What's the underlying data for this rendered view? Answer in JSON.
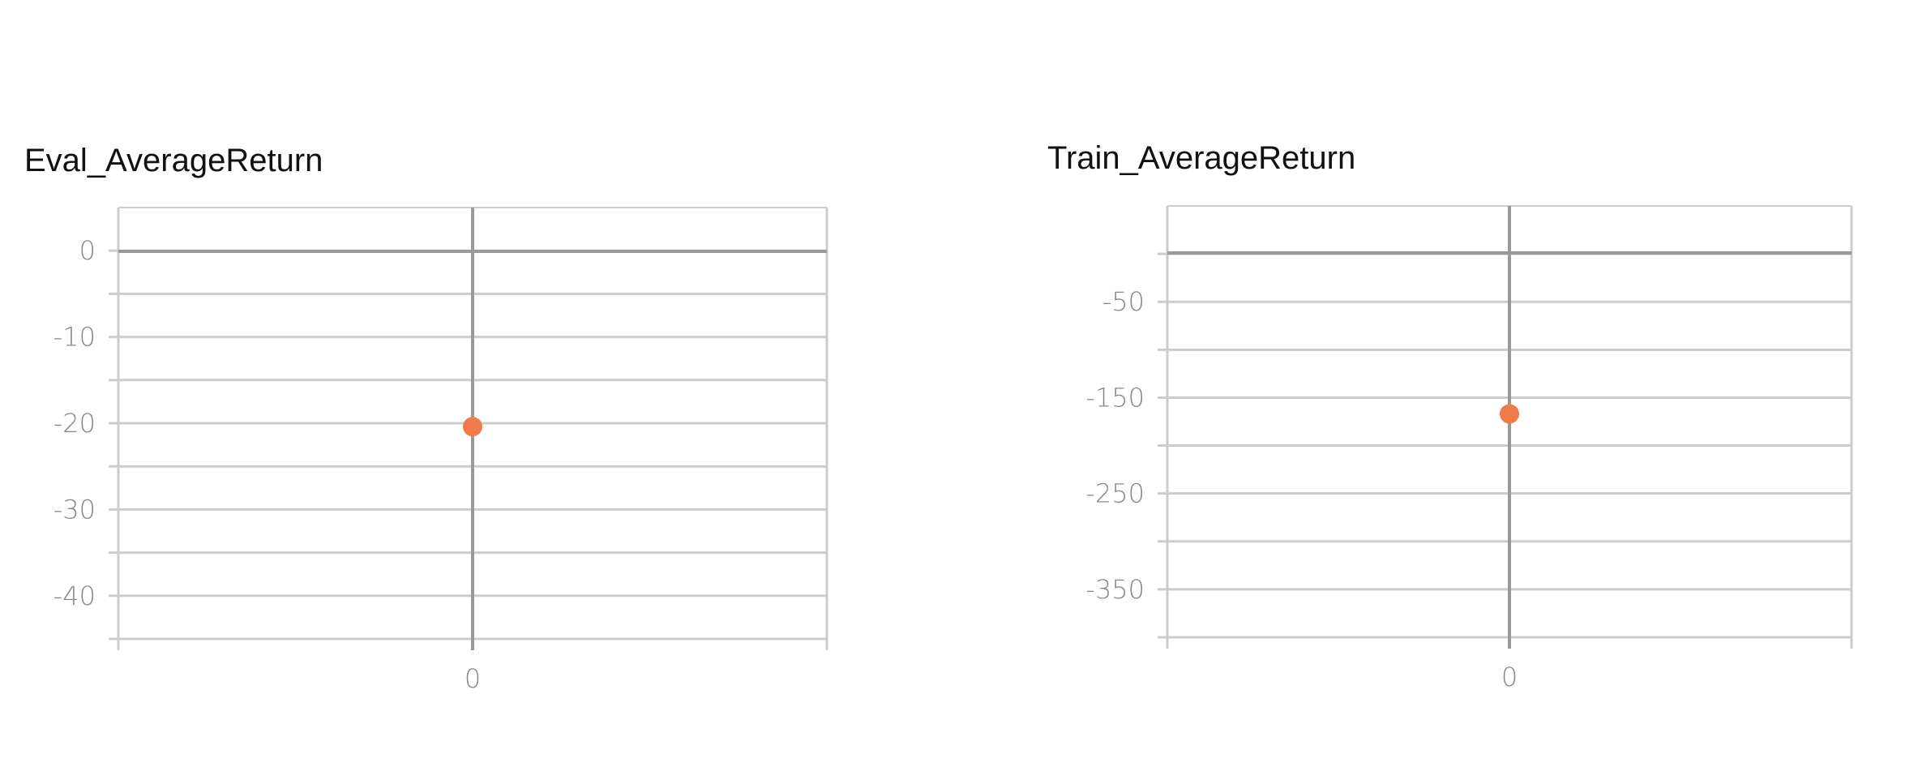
{
  "chart_data": [
    {
      "type": "scatter",
      "title": "Eval_AverageReturn",
      "xlabel": "",
      "ylabel": "",
      "x_ticks": [
        0
      ],
      "y_ticks": [
        0,
        -10,
        -20,
        -30,
        -40
      ],
      "ylim": [
        -45,
        5
      ],
      "xlim": [
        -1,
        1
      ],
      "grid": true,
      "point_color": "#f07a4a",
      "series": [
        {
          "x": [
            0
          ],
          "y": [
            -20.4
          ]
        }
      ]
    },
    {
      "type": "scatter",
      "title": "Train_AverageReturn",
      "xlabel": "",
      "ylabel": "",
      "x_ticks": [
        0
      ],
      "y_ticks": [
        -50,
        -150,
        -250,
        -350
      ],
      "ylim": [
        -400,
        50
      ],
      "xlim": [
        -1,
        1
      ],
      "grid": true,
      "point_color": "#f07a4a",
      "series": [
        {
          "x": [
            0
          ],
          "y": [
            -167
          ]
        }
      ]
    }
  ]
}
